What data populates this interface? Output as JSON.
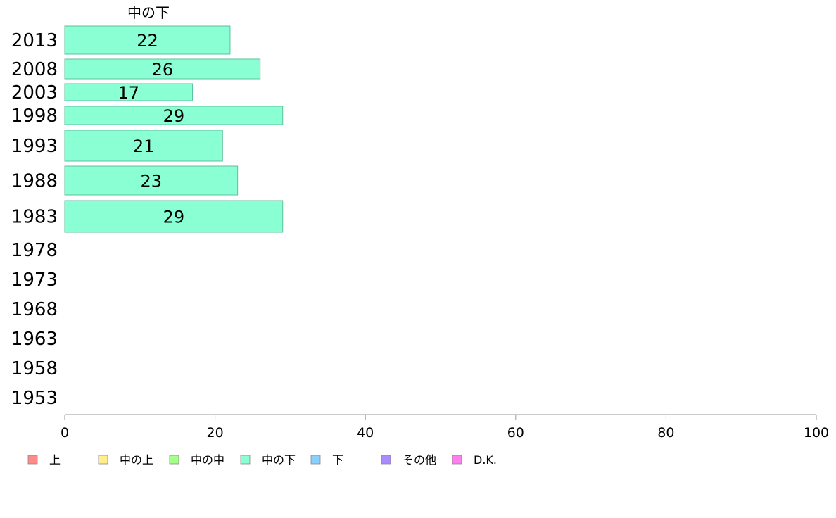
{
  "chart_data": {
    "type": "bar",
    "orientation": "horizontal",
    "title": "中の下",
    "categories": [
      "2013",
      "2008",
      "2003",
      "1998",
      "1993",
      "1988",
      "1983",
      "1978",
      "1973",
      "1968",
      "1963",
      "1958",
      "1953"
    ],
    "values": [
      22,
      26,
      17,
      29,
      21,
      23,
      29,
      null,
      null,
      null,
      null,
      null,
      null
    ],
    "series": [
      {
        "name": "中の下",
        "values": [
          22,
          26,
          17,
          29,
          21,
          23,
          29,
          null,
          null,
          null,
          null,
          null,
          null
        ]
      }
    ],
    "xlim": [
      0,
      100
    ],
    "xticks": [
      0,
      20,
      40,
      60,
      80,
      100
    ],
    "grid": false,
    "legend_position": "bottom-left",
    "legend": [
      {
        "label": "上",
        "color": "#ff8a8a"
      },
      {
        "label": "中の上",
        "color": "#ffee8a"
      },
      {
        "label": "中の中",
        "color": "#a6ff8a"
      },
      {
        "label": "中の下",
        "color": "#8affd4"
      },
      {
        "label": "下",
        "color": "#8ad0ff"
      },
      {
        "label": "その他",
        "color": "#a98aff"
      },
      {
        "label": "D.K.",
        "color": "#ff7ef0"
      }
    ],
    "bar_color": "#8affd4",
    "bar_stroke": "#5fbf9c",
    "axis_color": "#999999"
  }
}
